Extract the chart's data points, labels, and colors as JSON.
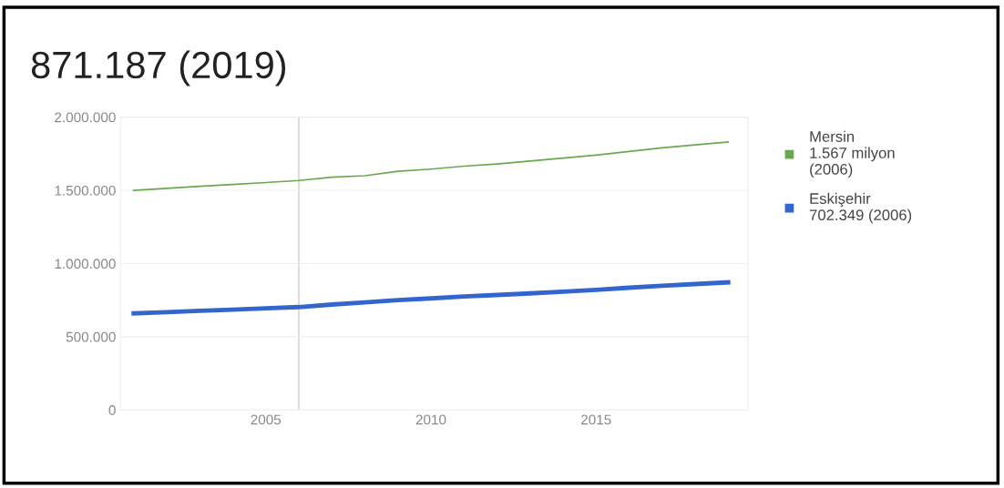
{
  "chart_data": {
    "type": "line",
    "title": "871.187 (2019)",
    "x": [
      2001,
      2002,
      2003,
      2004,
      2005,
      2006,
      2007,
      2008,
      2009,
      2010,
      2011,
      2012,
      2013,
      2014,
      2015,
      2016,
      2017,
      2018,
      2019
    ],
    "series": [
      {
        "name": "Mersin\n1.567 milyon\n(2006)",
        "color": "#6aa84f",
        "values": [
          1500000,
          1513000,
          1527000,
          1540000,
          1553000,
          1567000,
          1590000,
          1600000,
          1630000,
          1645000,
          1665000,
          1680000,
          1700000,
          1720000,
          1740000,
          1765000,
          1790000,
          1810000,
          1830000
        ]
      },
      {
        "name": "Eskişehir\n702.349 (2006)",
        "color": "#3366cc",
        "values": [
          660000,
          668000,
          677000,
          685000,
          694000,
          702349,
          720000,
          735000,
          750000,
          762000,
          775000,
          785000,
          796000,
          808000,
          820000,
          835000,
          848000,
          860000,
          871187
        ]
      }
    ],
    "xlim": [
      2000.6,
      2019.6
    ],
    "xticks": [
      2005,
      2010,
      2015
    ],
    "ylim": [
      0,
      2000000
    ],
    "yticks": [
      {
        "value": 0,
        "label": "0"
      },
      {
        "value": 500000,
        "label": "500.000"
      },
      {
        "value": 1000000,
        "label": "1.000.000"
      },
      {
        "value": 1500000,
        "label": "1.500.000"
      },
      {
        "value": 2000000,
        "label": "2.000.000"
      }
    ],
    "ref_lines": [
      {
        "axis": "x",
        "value": 2006,
        "color": "#dddddd"
      }
    ],
    "grid": "y",
    "legend": "right",
    "marker": "none",
    "line_style": "solid"
  }
}
